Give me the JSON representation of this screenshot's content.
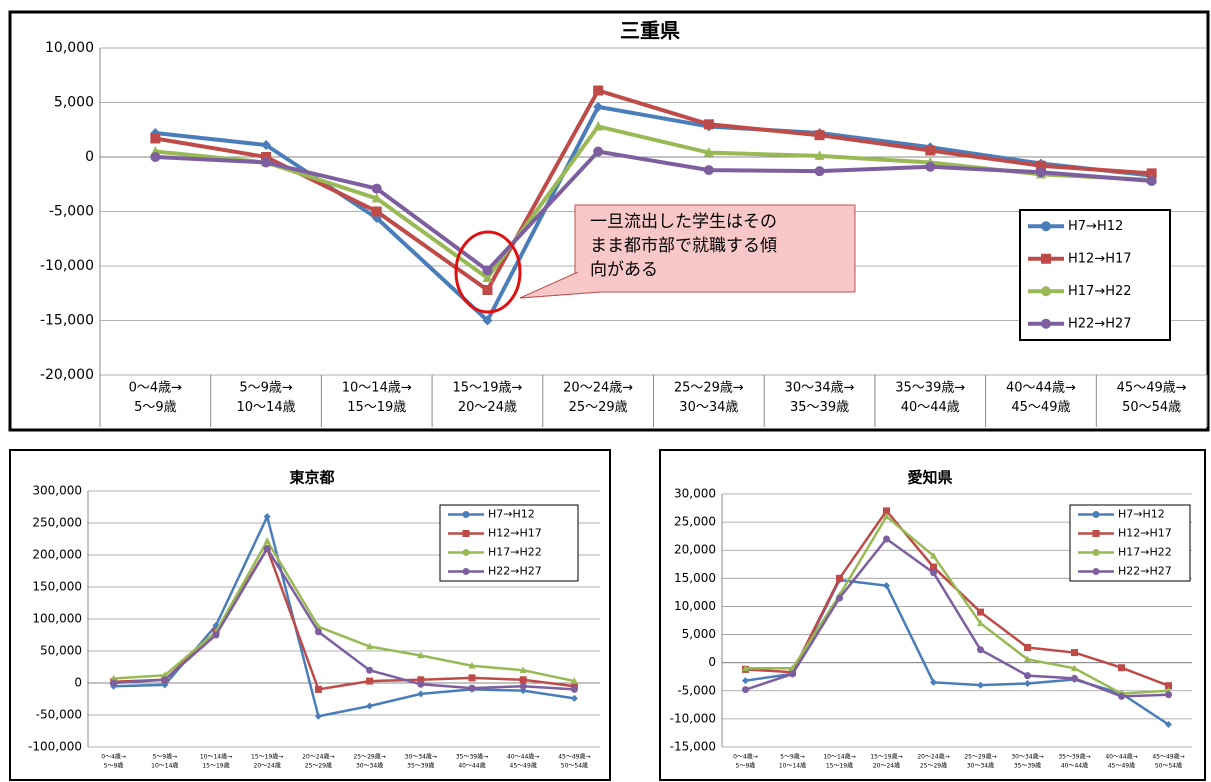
{
  "chart_data": [
    {
      "type": "line",
      "title": "三重県",
      "grid": true,
      "legend": "center right",
      "categories": [
        [
          "0～4歳→",
          "5～9歳"
        ],
        [
          "5～9歳→",
          "10～14歳"
        ],
        [
          "10～14歳→",
          "15～19歳"
        ],
        [
          "15～19歳→",
          "20～24歳"
        ],
        [
          "20～24歳→",
          "25～29歳"
        ],
        [
          "25～29歳→",
          "30～34歳"
        ],
        [
          "30～34歳→",
          "35～39歳"
        ],
        [
          "35～39歳→",
          "40～44歳"
        ],
        [
          "40～44歳→",
          "45～49歳"
        ],
        [
          "45～49歳→",
          "50～54歳"
        ]
      ],
      "ylim": [
        -20000,
        10000
      ],
      "yticks": [
        {
          "value": -20000,
          "label": "-20,000"
        },
        {
          "value": -15000,
          "label": "-15,000"
        },
        {
          "value": -10000,
          "label": "-10,000"
        },
        {
          "value": -5000,
          "label": "-5,000"
        },
        0,
        {
          "value": 5000,
          "label": "5,000"
        },
        {
          "value": 10000,
          "label": "10,000"
        }
      ],
      "series": [
        {
          "name": "H7→H12",
          "color": "#4a7ebb",
          "marker": "diamond",
          "values": [
            2200,
            1100,
            -5600,
            -15000,
            4600,
            2800,
            2200,
            900,
            -600,
            -1700
          ]
        },
        {
          "name": "H12→H17",
          "color": "#be4b48",
          "marker": "square",
          "values": [
            1700,
            0,
            -5000,
            -12200,
            6100,
            3000,
            2000,
            600,
            -800,
            -1500
          ]
        },
        {
          "name": "H17→H22",
          "color": "#98b954",
          "marker": "triangle",
          "values": [
            500,
            -500,
            -3800,
            -11100,
            2800,
            400,
            100,
            -500,
            -1600,
            -2100
          ]
        },
        {
          "name": "H22→H27",
          "color": "#7d5fa0",
          "marker": "circle",
          "values": [
            0,
            -500,
            -2900,
            -10400,
            500,
            -1200,
            -1300,
            -900,
            -1400,
            -2200
          ]
        }
      ],
      "annotation": [
        "一旦流出した学生はその",
        "まま都市部で就職する傾",
        "向がある"
      ]
    },
    {
      "type": "line",
      "title": "東京都",
      "grid": true,
      "legend": "upper right",
      "categories": [
        [
          "0～4歳→",
          "5～9歳"
        ],
        [
          "5～9歳→",
          "10～14歳"
        ],
        [
          "10～14歳→",
          "15～19歳"
        ],
        [
          "15～19歳→",
          "20～24歳"
        ],
        [
          "20～24歳→",
          "25～29歳"
        ],
        [
          "25～29歳→",
          "30～34歳"
        ],
        [
          "30～34歳→",
          "35～39歳"
        ],
        [
          "35～39歳→",
          "40～44歳"
        ],
        [
          "40～44歳→",
          "45～49歳"
        ],
        [
          "45～49歳→",
          "50～54歳"
        ]
      ],
      "ylim": [
        -100000,
        300000
      ],
      "yticks": [
        {
          "value": -100000,
          "label": "-100,000"
        },
        {
          "value": -50000,
          "label": "-50,000"
        },
        0,
        {
          "value": 50000,
          "label": "50,000"
        },
        {
          "value": 100000,
          "label": "100,000"
        },
        {
          "value": 150000,
          "label": "150,000"
        },
        {
          "value": 200000,
          "label": "200,000"
        },
        {
          "value": 250000,
          "label": "250,000"
        },
        {
          "value": 300000,
          "label": "300,000"
        }
      ],
      "series": [
        {
          "name": "H7→H12",
          "color": "#4a7ebb",
          "marker": "diamond",
          "values": [
            -5000,
            -3000,
            90000,
            260000,
            -52000,
            -36000,
            -17000,
            -10000,
            -12000,
            -24000
          ]
        },
        {
          "name": "H12→H17",
          "color": "#be4b48",
          "marker": "square",
          "values": [
            2000,
            5000,
            80000,
            210000,
            -10000,
            3000,
            5000,
            8000,
            5000,
            -5000
          ]
        },
        {
          "name": "H17→H22",
          "color": "#98b954",
          "marker": "triangle",
          "values": [
            7000,
            12000,
            80000,
            222000,
            88000,
            57000,
            43000,
            27000,
            20000,
            3000
          ]
        },
        {
          "name": "H22→H27",
          "color": "#7d5fa0",
          "marker": "circle",
          "values": [
            0,
            5000,
            75000,
            210000,
            80000,
            20000,
            -2000,
            -8000,
            -5000,
            -10000
          ]
        }
      ]
    },
    {
      "type": "line",
      "title": "愛知県",
      "grid": true,
      "legend": "upper right",
      "categories": [
        [
          "0～4歳→",
          "5～9歳"
        ],
        [
          "5～9歳→",
          "10～14歳"
        ],
        [
          "10～14歳→",
          "15～19歳"
        ],
        [
          "15～19歳→",
          "20～24歳"
        ],
        [
          "20～24歳→",
          "25～29歳"
        ],
        [
          "25～29歳→",
          "30～34歳"
        ],
        [
          "30～34歳→",
          "35～39歳"
        ],
        [
          "35～39歳→",
          "40～44歳"
        ],
        [
          "40～44歳→",
          "45～49歳"
        ],
        [
          "45～49歳→",
          "50～54歳"
        ]
      ],
      "ylim": [
        -15000,
        30000
      ],
      "yticks": [
        {
          "value": -15000,
          "label": "-15,000"
        },
        {
          "value": -10000,
          "label": "-10,000"
        },
        {
          "value": -5000,
          "label": "-5,000"
        },
        0,
        {
          "value": 5000,
          "label": "5,000"
        },
        {
          "value": 10000,
          "label": "10,000"
        },
        {
          "value": 15000,
          "label": "15,000"
        },
        {
          "value": 20000,
          "label": "20,000"
        },
        {
          "value": 25000,
          "label": "25,000"
        },
        {
          "value": 30000,
          "label": "30,000"
        }
      ],
      "series": [
        {
          "name": "H7→H12",
          "color": "#4a7ebb",
          "marker": "diamond",
          "values": [
            -3200,
            -2000,
            14700,
            13700,
            -3500,
            -4000,
            -3700,
            -3000,
            -5500,
            -11000
          ]
        },
        {
          "name": "H12→H17",
          "color": "#be4b48",
          "marker": "square",
          "values": [
            -1200,
            -1700,
            15000,
            27000,
            17000,
            9000,
            2700,
            1800,
            -900,
            -4100
          ]
        },
        {
          "name": "H17→H22",
          "color": "#98b954",
          "marker": "triangle",
          "values": [
            -1000,
            -1000,
            12000,
            26000,
            19000,
            7000,
            600,
            -1000,
            -5500,
            -5000
          ]
        },
        {
          "name": "H22→H27",
          "color": "#7d5fa0",
          "marker": "circle",
          "values": [
            -4800,
            -2000,
            11500,
            22000,
            16000,
            2300,
            -2300,
            -2800,
            -6000,
            -5700
          ]
        }
      ]
    }
  ]
}
